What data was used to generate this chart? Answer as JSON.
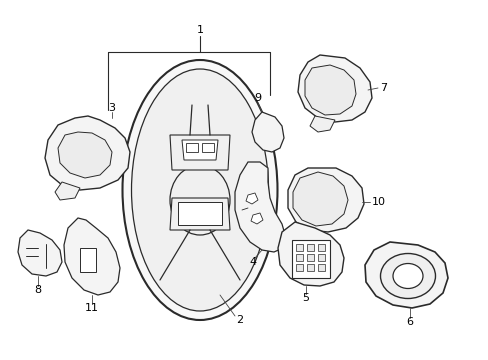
{
  "background_color": "#ffffff",
  "line_color": "#2a2a2a",
  "text_color": "#000000",
  "fig_width": 4.89,
  "fig_height": 3.6,
  "dpi": 100
}
